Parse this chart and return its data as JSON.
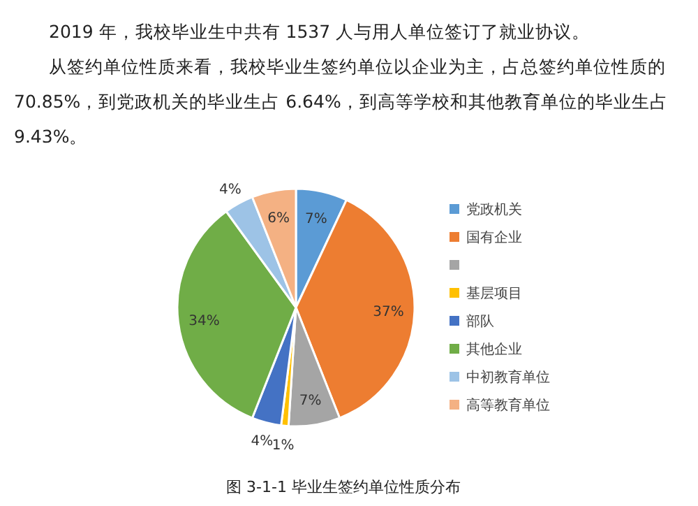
{
  "chart_data": {
    "type": "pie",
    "categories": [
      "党政机关",
      "国有企业",
      null,
      "基层项目",
      "部队",
      "其他企业",
      "中初教育单位",
      "高等教育单位"
    ],
    "values": [
      7,
      37,
      7,
      1,
      4,
      34,
      4,
      6
    ],
    "colors": [
      "#5b9bd5",
      "#ed7d31",
      "#a5a5a5",
      "#ffc000",
      "#4472c4",
      "#70ad47",
      "#9dc3e6",
      "#f4b183"
    ],
    "value_labels": [
      "7%",
      "37%",
      "7%",
      "1%",
      "4%",
      "34%",
      "4%",
      "6%"
    ],
    "legend": "right",
    "annotations": [
      "2019 年，我校毕业生中共有 1537 人与用人单位签订了就业协议。",
      "从签约单位性质来看，我校毕业生签约单位以企业为主，占总签约单位性质的 70.85%，到党政机关的毕业生占 6.64%，到高等学校和其他教育单位的毕业生占 9.43%。",
      "图 3-1-1 毕业生签约单位性质分布"
    ]
  }
}
